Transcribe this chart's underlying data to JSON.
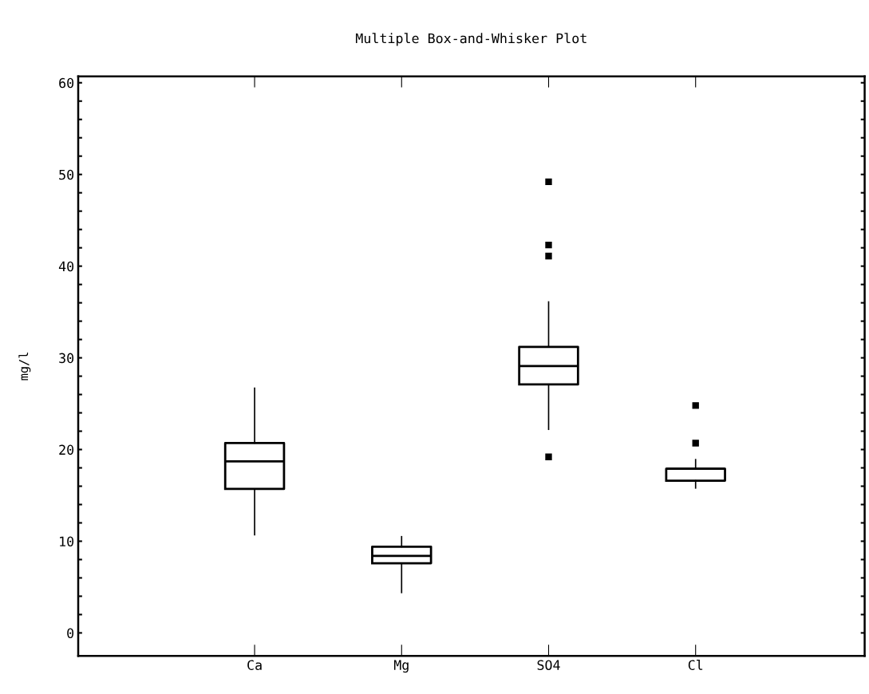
{
  "chart_data": {
    "type": "box",
    "title": "Multiple Box-and-Whisker Plot",
    "ylabel": "mg/l",
    "categories": [
      "Ca",
      "Mg",
      "SO4",
      "Cl"
    ],
    "boxes": [
      {
        "low": 10.7,
        "q1": 15.7,
        "median": 18.7,
        "q3": 20.7,
        "high": 26.7
      },
      {
        "low": 4.4,
        "q1": 7.6,
        "median": 8.4,
        "q3": 9.4,
        "high": 10.5
      },
      {
        "low": 22.2,
        "q1": 27.1,
        "median": 29.1,
        "q3": 31.2,
        "high": 36.1,
        "outliers": [
          19.2,
          41.1,
          42.3,
          49.2
        ]
      },
      {
        "low": 15.8,
        "q1": 16.6,
        "median": 17.9,
        "q3": 17.9,
        "high": 18.9,
        "outliers": [
          20.7,
          24.8
        ]
      }
    ],
    "ylim": [
      -2.5,
      60.7
    ],
    "yticks": [
      0,
      {
        "value": 2,
        "label": null
      },
      {
        "value": 4,
        "label": null
      },
      {
        "value": 6,
        "label": null
      },
      {
        "value": 8,
        "label": null
      },
      10,
      {
        "value": 12,
        "label": null
      },
      {
        "value": 14,
        "label": null
      },
      {
        "value": 16,
        "label": null
      },
      {
        "value": 18,
        "label": null
      },
      20,
      {
        "value": 22,
        "label": null
      },
      {
        "value": 24,
        "label": null
      },
      {
        "value": 26,
        "label": null
      },
      {
        "value": 28,
        "label": null
      },
      30,
      {
        "value": 32,
        "label": null
      },
      {
        "value": 34,
        "label": null
      },
      {
        "value": 36,
        "label": null
      },
      {
        "value": 38,
        "label": null
      },
      40,
      {
        "value": 42,
        "label": null
      },
      {
        "value": 44,
        "label": null
      },
      {
        "value": 46,
        "label": null
      },
      {
        "value": 48,
        "label": null
      },
      50,
      {
        "value": 52,
        "label": null
      },
      {
        "value": 54,
        "label": null
      },
      {
        "value": 56,
        "label": null
      },
      {
        "value": 58,
        "label": null
      },
      60
    ],
    "grid": false,
    "legend": false,
    "marker": "square"
  }
}
